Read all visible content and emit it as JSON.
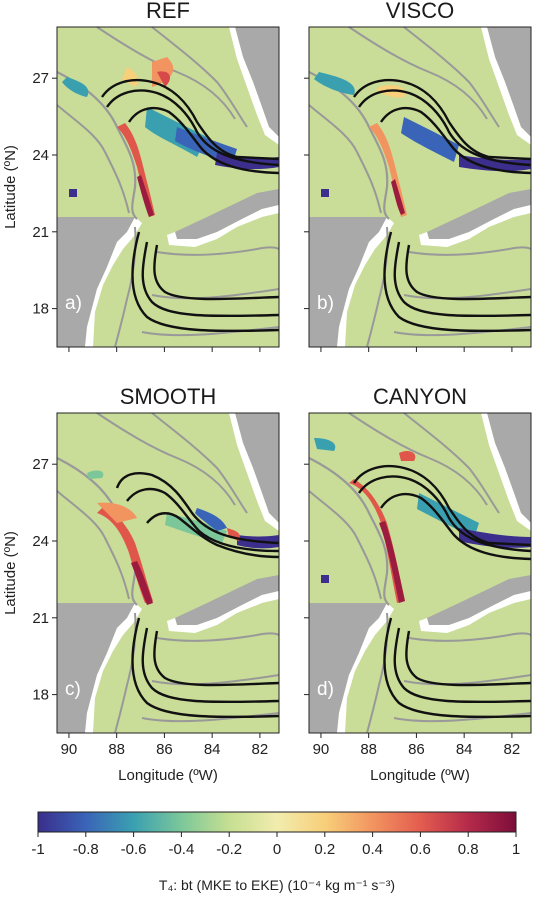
{
  "figure": {
    "ylabel": "Latitude (ºN)",
    "xlabel": "Longitude (ºW)",
    "colorbar_label": "T₄: bt (MKE to EKE) (10⁻⁴ kg m⁻¹ s⁻³)"
  },
  "chart_data": [
    {
      "type": "heatmap",
      "title": "REF",
      "panel_label": "a)",
      "x_ticks": [
        "90",
        "88",
        "86",
        "84",
        "82"
      ],
      "y_ticks": [
        "18",
        "21",
        "24",
        "27"
      ],
      "xlim": [
        90.5,
        81.2
      ],
      "ylim": [
        16.5,
        29
      ]
    },
    {
      "type": "heatmap",
      "title": "VISCO",
      "panel_label": "b)",
      "x_ticks": [
        "90",
        "88",
        "86",
        "84",
        "82"
      ],
      "y_ticks": [
        "18",
        "21",
        "24",
        "27"
      ],
      "xlim": [
        90.5,
        81.2
      ],
      "ylim": [
        16.5,
        29
      ]
    },
    {
      "type": "heatmap",
      "title": "SMOOTH",
      "panel_label": "c)",
      "x_ticks": [
        "90",
        "88",
        "86",
        "84",
        "82"
      ],
      "y_ticks": [
        "18",
        "21",
        "24",
        "27"
      ],
      "xlim": [
        90.5,
        81.2
      ],
      "ylim": [
        16.5,
        29
      ]
    },
    {
      "type": "heatmap",
      "title": "CANYON",
      "panel_label": "d)",
      "x_ticks": [
        "90",
        "88",
        "86",
        "84",
        "82"
      ],
      "y_ticks": [
        "18",
        "21",
        "24",
        "27"
      ],
      "xlim": [
        90.5,
        81.2
      ],
      "ylim": [
        16.5,
        29
      ]
    }
  ],
  "colorbar": {
    "ticks": [
      "-1",
      "-0.8",
      "-0.6",
      "-0.4",
      "-0.2",
      "0",
      "0.2",
      "0.4",
      "0.6",
      "0.8",
      "1"
    ],
    "range": [
      -1,
      1
    ],
    "colors": [
      "#3b2e8c",
      "#3a64b8",
      "#3aa0b0",
      "#7cc79a",
      "#c6df92",
      "#f1ecae",
      "#f8cf7a",
      "#f29460",
      "#e35d4f",
      "#b52a4a",
      "#7d0d3a"
    ]
  }
}
